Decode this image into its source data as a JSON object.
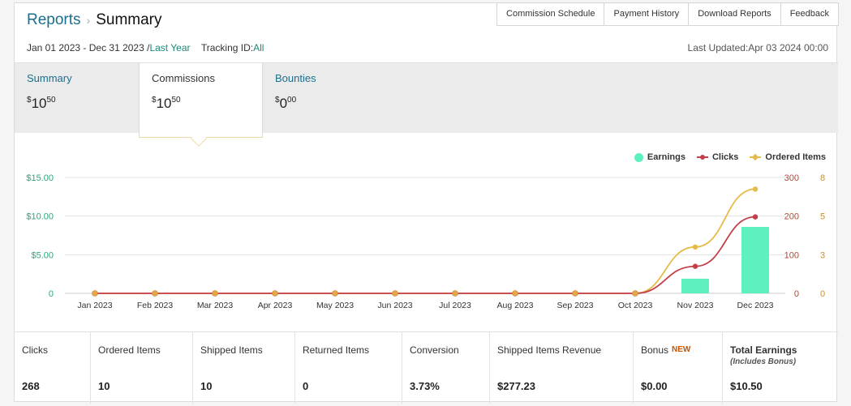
{
  "header": {
    "breadcrumb_root": "Reports",
    "breadcrumb_sep": "›",
    "breadcrumb_current": "Summary",
    "links": [
      "Commission Schedule",
      "Payment History",
      "Download Reports",
      "Feedback"
    ],
    "date_range": "Jan 01 2023 - Dec 31 2023 /",
    "date_preset": "Last Year",
    "tracking_label": "Tracking ID:",
    "tracking_value": "All",
    "last_updated": "Last Updated:Apr 03 2024 00:00"
  },
  "tiles": [
    {
      "label": "Summary",
      "currency": "$",
      "whole": "10",
      "cents": "50"
    },
    {
      "label": "Commissions",
      "currency": "$",
      "whole": "10",
      "cents": "50"
    },
    {
      "label": "Bounties",
      "currency": "$",
      "whole": "0",
      "cents": "00"
    }
  ],
  "legend": {
    "earnings": "Earnings",
    "clicks": "Clicks",
    "ordered": "Ordered Items"
  },
  "colors": {
    "earnings": "#5ff0c0",
    "clicks": "#c3404a",
    "ordered": "#e6bb47",
    "left_axis": "#2aa57a",
    "right_axis": "#b5452f"
  },
  "chart_data": {
    "type": "bar",
    "categories": [
      "Jan 2023",
      "Feb 2023",
      "Mar 2023",
      "Apr 2023",
      "May 2023",
      "Jun 2023",
      "Jul 2023",
      "Aug 2023",
      "Sep 2023",
      "Oct 2023",
      "Nov 2023",
      "Dec 2023"
    ],
    "series": [
      {
        "name": "Earnings",
        "type": "bar",
        "axis": "left",
        "values": [
          0,
          0,
          0,
          0,
          0,
          0,
          0,
          0,
          0,
          0,
          1.9,
          8.6
        ]
      },
      {
        "name": "Clicks",
        "type": "line",
        "axis": "right-clicks",
        "values": [
          0,
          0,
          0,
          0,
          0,
          0,
          0,
          0,
          0,
          0,
          70,
          198
        ]
      },
      {
        "name": "Ordered Items",
        "type": "line",
        "axis": "right-items",
        "values": [
          0,
          0,
          0,
          0,
          0,
          0,
          0,
          0,
          0,
          0,
          3.2,
          7.2
        ]
      }
    ],
    "left_ticks": [
      "0",
      "$5.00",
      "$10.00",
      "$15.00"
    ],
    "clicks_ticks": [
      "0",
      "100",
      "200",
      "300"
    ],
    "items_ticks": [
      "0",
      "3",
      "5",
      "8"
    ],
    "left_max": 15,
    "clicks_max": 300,
    "items_max": 8,
    "grid": true,
    "legend_position": "top-right"
  },
  "metrics": [
    {
      "label": "Clicks",
      "value": "268"
    },
    {
      "label": "Ordered Items",
      "value": "10"
    },
    {
      "label": "Shipped Items",
      "value": "10"
    },
    {
      "label": "Returned Items",
      "value": "0"
    },
    {
      "label": "Conversion",
      "value": "3.73%"
    },
    {
      "label": "Shipped Items Revenue",
      "value": "$277.23"
    },
    {
      "label": "Bonus",
      "badge": "NEW",
      "value": "$0.00"
    },
    {
      "label": "Total Earnings",
      "sub": "(Includes Bonus)",
      "value": "$10.50"
    }
  ]
}
